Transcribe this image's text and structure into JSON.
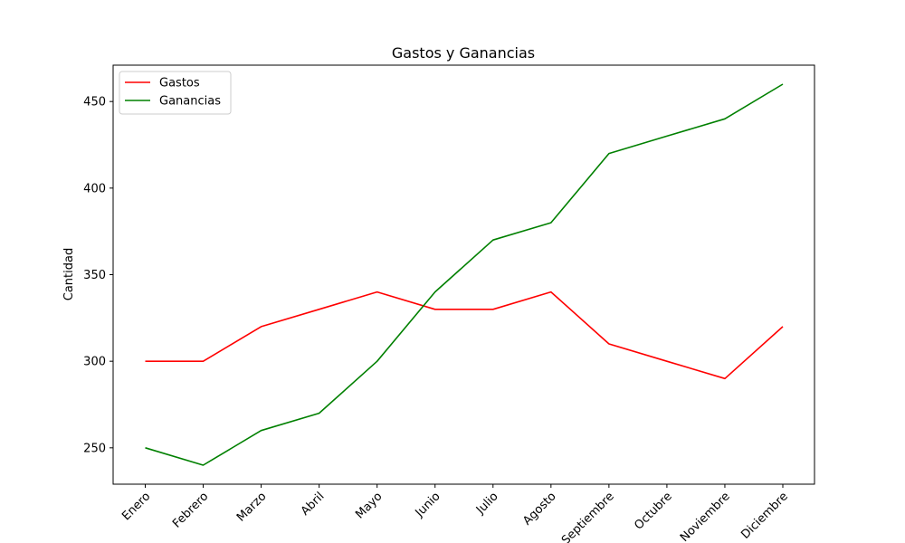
{
  "chart_data": {
    "type": "line",
    "title": "Gastos y Ganancias",
    "xlabel": "",
    "ylabel": "Cantidad",
    "categories": [
      "Enero",
      "Febrero",
      "Marzo",
      "Abril",
      "Mayo",
      "Junio",
      "Julio",
      "Agosto",
      "Septiembre",
      "Octubre",
      "Noviembre",
      "Diciembre"
    ],
    "series": [
      {
        "name": "Gastos",
        "color": "#ff0000",
        "values": [
          300,
          300,
          320,
          330,
          340,
          330,
          330,
          340,
          310,
          300,
          290,
          320
        ]
      },
      {
        "name": "Ganancias",
        "color": "#008000",
        "values": [
          250,
          240,
          260,
          270,
          300,
          340,
          370,
          380,
          420,
          430,
          440,
          460
        ]
      }
    ],
    "ylim": [
      229,
      471
    ],
    "yticks": [
      250,
      300,
      350,
      400,
      450
    ],
    "grid": false,
    "legend_position": "top-left"
  }
}
